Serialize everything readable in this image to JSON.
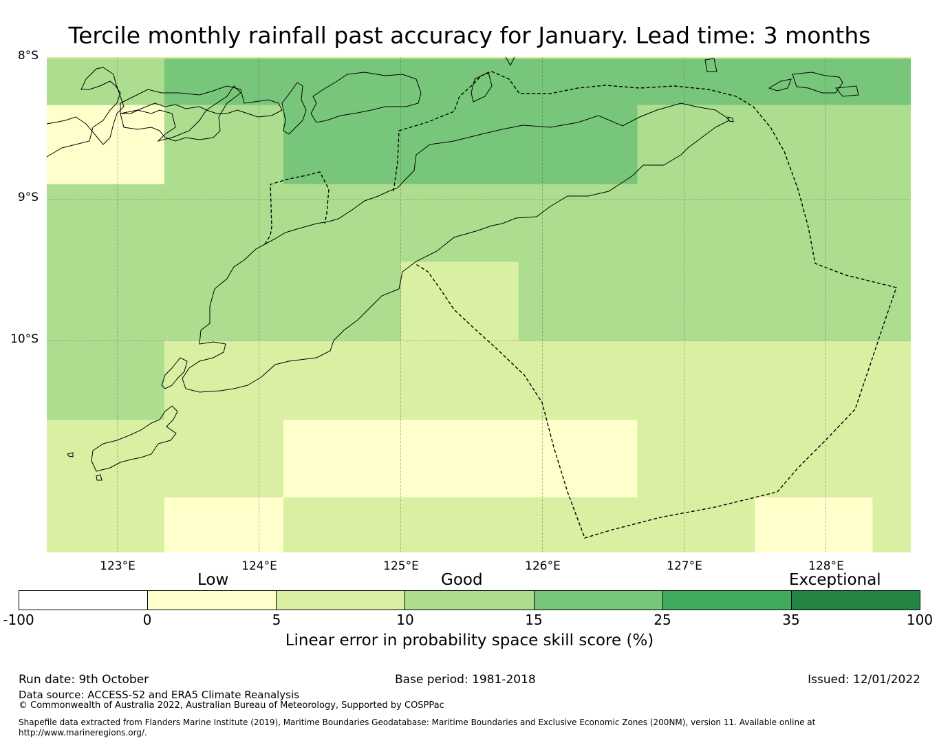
{
  "title": "Tercile monthly rainfall past accuracy for January. Lead time: 3 months",
  "map": {
    "lat_labels": [
      "8°S",
      "9°S",
      "10°S"
    ],
    "lon_labels": [
      "123°E",
      "124°E",
      "125°E",
      "126°E",
      "127°E",
      "128°E"
    ],
    "extent": {
      "lon_min": 122.5,
      "lon_max": 128.6,
      "lat_min": -11.5,
      "lat_max": -7.99
    },
    "grid_cells": [
      {
        "lat_from": -8.0,
        "lat_to": -8.33,
        "lon_from": 122.5,
        "lon_to": 123.33,
        "value": 12
      },
      {
        "lat_from": -8.0,
        "lat_to": -8.33,
        "lon_from": 123.33,
        "lon_to": 128.6,
        "value": 18
      },
      {
        "lat_from": -8.33,
        "lat_to": -8.89,
        "lon_from": 122.5,
        "lon_to": 123.33,
        "value": 3
      },
      {
        "lat_from": -8.33,
        "lat_to": -8.89,
        "lon_from": 123.33,
        "lon_to": 124.17,
        "value": 12
      },
      {
        "lat_from": -8.33,
        "lat_to": -8.89,
        "lon_from": 124.17,
        "lon_to": 126.67,
        "value": 18
      },
      {
        "lat_from": -8.33,
        "lat_to": -8.89,
        "lon_from": 126.67,
        "lon_to": 128.6,
        "value": 12
      },
      {
        "lat_from": -8.89,
        "lat_to": -9.44,
        "lon_from": 122.5,
        "lon_to": 128.6,
        "value": 12
      },
      {
        "lat_from": -9.44,
        "lat_to": -10.0,
        "lon_from": 122.5,
        "lon_to": 125.0,
        "value": 12
      },
      {
        "lat_from": -9.44,
        "lat_to": -10.0,
        "lon_from": 125.0,
        "lon_to": 125.83,
        "value": 8
      },
      {
        "lat_from": -9.44,
        "lat_to": -10.0,
        "lon_from": 125.83,
        "lon_to": 128.6,
        "value": 12
      },
      {
        "lat_from": -10.0,
        "lat_to": -10.56,
        "lon_from": 122.5,
        "lon_to": 123.33,
        "value": 12
      },
      {
        "lat_from": -10.0,
        "lat_to": -10.56,
        "lon_from": 123.33,
        "lon_to": 128.6,
        "value": 8
      },
      {
        "lat_from": -10.56,
        "lat_to": -11.11,
        "lon_from": 122.5,
        "lon_to": 124.17,
        "value": 8
      },
      {
        "lat_from": -10.56,
        "lat_to": -11.11,
        "lon_from": 124.17,
        "lon_to": 126.67,
        "value": 3
      },
      {
        "lat_from": -10.56,
        "lat_to": -11.11,
        "lon_from": 126.67,
        "lon_to": 128.6,
        "value": 8
      },
      {
        "lat_from": -11.11,
        "lat_to": -11.5,
        "lon_from": 122.5,
        "lon_to": 123.33,
        "value": 8
      },
      {
        "lat_from": -11.11,
        "lat_to": -11.5,
        "lon_from": 123.33,
        "lon_to": 124.17,
        "value": 3
      },
      {
        "lat_from": -11.11,
        "lat_to": -11.5,
        "lon_from": 124.17,
        "lon_to": 127.5,
        "value": 8
      },
      {
        "lat_from": -11.11,
        "lat_to": -11.5,
        "lon_from": 127.5,
        "lon_to": 128.33,
        "value": 3
      },
      {
        "lat_from": -11.11,
        "lat_to": -11.5,
        "lon_from": 128.33,
        "lon_to": 128.6,
        "value": 8
      }
    ]
  },
  "legend": {
    "categories": [
      "Low",
      "Good",
      "Exceptional"
    ],
    "ticks": [
      "-100",
      "0",
      "5",
      "10",
      "15",
      "25",
      "35",
      "100"
    ],
    "colors": [
      "#ffffff",
      "#ffffcc",
      "#d9f0a3",
      "#addd8e",
      "#78c679",
      "#41ab5d",
      "#238443"
    ],
    "title": "Linear error in probability space skill score (%)"
  },
  "footer": {
    "run_date": "Run date: 9th October",
    "base_period": "Base period: 1981-2018",
    "issued": "Issued: 12/01/2022",
    "data_source": "Data source: ACCESS-S2 and ERA5 Climate Reanalysis",
    "copyright": "© Commonwealth of Australia 2022, Australian Bureau of Meteorology, Supported by COSPPac",
    "shapefile": "Shapefile data extracted from Flanders Marine Institute (2019), Maritime Boundaries Geodatabase: Maritime Boundaries and Exclusive Economic Zones (200NM), version 11. Available online at http://www.marineregions.org/."
  }
}
